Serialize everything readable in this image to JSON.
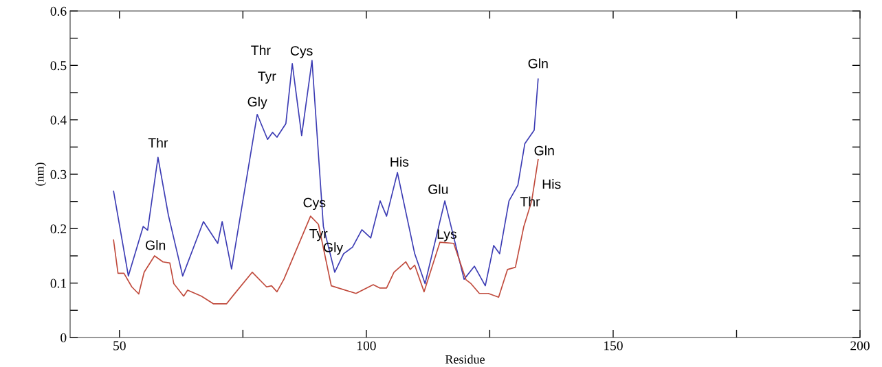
{
  "chart_data": {
    "type": "line",
    "xlabel": "Residue",
    "ylabel": "(nm)",
    "xlim": [
      40,
      200
    ],
    "ylim": [
      0,
      0.6
    ],
    "xticks": [
      50,
      {
        "value": 75,
        "label": null
      },
      100,
      {
        "value": 125,
        "label": null
      },
      150,
      {
        "value": 175,
        "label": null
      },
      200
    ],
    "yticks": [
      0,
      {
        "value": 0.05,
        "label": null
      },
      0.1,
      {
        "value": 0.15,
        "label": null
      },
      0.2,
      {
        "value": 0.25,
        "label": null
      },
      0.3,
      {
        "value": 0.35,
        "label": null
      },
      0.4,
      {
        "value": 0.45,
        "label": null
      },
      0.5,
      {
        "value": 0.55,
        "label": null
      },
      0.6
    ],
    "grid": false,
    "marker": "none",
    "line_style": "solid",
    "series": [
      {
        "color": "#3c3cb4",
        "x": [
          48.8,
          51.8,
          54.8,
          55.7,
          57.8,
          59.9,
          62.8,
          67.0,
          69.9,
          70.8,
          72.7,
          77.9,
          80.0,
          81.0,
          81.9,
          83.7,
          85.0,
          86.9,
          89.0,
          91.3,
          93.6,
          95.4,
          97.2,
          99.1,
          100.9,
          102.8,
          104.1,
          106.3,
          109.8,
          111.9,
          115.9,
          119.8,
          121.9,
          124.1,
          125.8,
          127.0,
          128.9,
          130.7,
          132.1,
          134.0,
          134.8
        ],
        "values": [
          0.269,
          0.113,
          0.204,
          0.197,
          0.331,
          0.225,
          0.113,
          0.213,
          0.173,
          0.213,
          0.126,
          0.41,
          0.364,
          0.377,
          0.368,
          0.393,
          0.503,
          0.371,
          0.509,
          0.204,
          0.12,
          0.154,
          0.166,
          0.198,
          0.183,
          0.251,
          0.223,
          0.303,
          0.154,
          0.099,
          0.251,
          0.107,
          0.131,
          0.095,
          0.169,
          0.154,
          0.251,
          0.28,
          0.356,
          0.381,
          0.475
        ]
      },
      {
        "color": "#c04a3c",
        "x": [
          48.8,
          49.7,
          50.9,
          52.5,
          53.9,
          55.0,
          57.1,
          58.8,
          60.2,
          61.0,
          63.0,
          63.8,
          66.6,
          69.0,
          71.7,
          73.1,
          76.9,
          79.8,
          80.8,
          81.9,
          83.3,
          88.7,
          90.3,
          92.9,
          97.9,
          101.4,
          102.7,
          104.1,
          105.6,
          108.0,
          108.9,
          109.8,
          111.7,
          114.9,
          117.7,
          120.2,
          121.2,
          122.9,
          124.7,
          126.8,
          128.6,
          130.2,
          131.9,
          133.5,
          134.8
        ],
        "values": [
          0.179,
          0.118,
          0.118,
          0.093,
          0.08,
          0.12,
          0.15,
          0.139,
          0.137,
          0.099,
          0.076,
          0.087,
          0.076,
          0.062,
          0.062,
          0.078,
          0.12,
          0.093,
          0.095,
          0.084,
          0.107,
          0.223,
          0.208,
          0.095,
          0.081,
          0.097,
          0.091,
          0.091,
          0.12,
          0.139,
          0.125,
          0.133,
          0.084,
          0.175,
          0.173,
          0.106,
          0.099,
          0.081,
          0.081,
          0.074,
          0.125,
          0.129,
          0.204,
          0.251,
          0.327
        ]
      }
    ],
    "annotations": [
      {
        "text": "Thr",
        "x": 57.8,
        "y": 0.331
      },
      {
        "text": "Gly",
        "x": 77.9,
        "y": 0.41
      },
      {
        "text": "Thr",
        "x": 85.0,
        "y": 0.503
      },
      {
        "text": "Tyr",
        "x": 84.7,
        "y": 0.478
      },
      {
        "text": "Cys",
        "x": 89.0,
        "y": 0.509
      },
      {
        "text": "His",
        "x": 106.3,
        "y": 0.303
      },
      {
        "text": "Glu",
        "x": 115.9,
        "y": 0.251
      },
      {
        "text": "Gln",
        "x": 134.8,
        "y": 0.475
      },
      {
        "text": "Gln",
        "x": 131.6,
        "y": 0.329
      },
      {
        "text": "His",
        "x": 134.8,
        "y": 0.327
      },
      {
        "text": "Thr",
        "x": 128.9,
        "y": 0.251
      },
      {
        "text": "Gln",
        "x": 57.1,
        "y": 0.15
      },
      {
        "text": "Cys",
        "x": 88.7,
        "y": 0.223
      },
      {
        "text": "Tyr",
        "x": 90.3,
        "y": 0.208
      },
      {
        "text": "Gly",
        "x": 92.5,
        "y": 0.16
      },
      {
        "text": "Lys",
        "x": 116.3,
        "y": 0.174
      }
    ]
  }
}
